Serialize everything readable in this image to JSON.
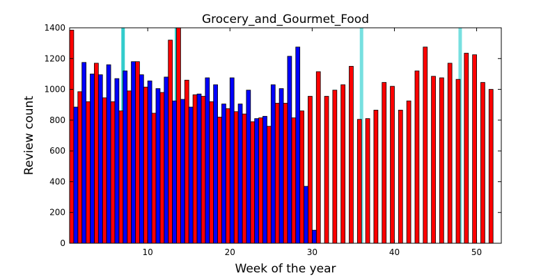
{
  "chart_data": {
    "type": "bar",
    "title": "Grocery_and_Gourmet_Food",
    "xlabel": "Week of the year",
    "ylabel": "Review count",
    "xlim": [
      0.5,
      53
    ],
    "ylim": [
      0,
      1400
    ],
    "xticks": [
      10,
      20,
      30,
      40,
      50
    ],
    "yticks": [
      0,
      200,
      400,
      600,
      800,
      1000,
      1200,
      1400
    ],
    "grid": false,
    "legend": "none",
    "series": [
      {
        "color": "#ff0000",
        "x": [
          1,
          2,
          3,
          4,
          5,
          6,
          7,
          8,
          9,
          10,
          11,
          12,
          13,
          14,
          15,
          16,
          17,
          18,
          19,
          20,
          21,
          22,
          23,
          24,
          25,
          26,
          27,
          28,
          29,
          30,
          31,
          32,
          33,
          34,
          35,
          36,
          37,
          38,
          39,
          40,
          41,
          42,
          43,
          44,
          45,
          46,
          47,
          48,
          49,
          50,
          51,
          52
        ],
        "values": [
          1385,
          985,
          920,
          1170,
          945,
          920,
          860,
          990,
          1180,
          1015,
          845,
          980,
          1320,
          1400,
          1060,
          965,
          955,
          920,
          820,
          875,
          855,
          840,
          790,
          815,
          760,
          910,
          910,
          815,
          860,
          955,
          1115,
          955,
          995,
          1030,
          1150,
          805,
          810,
          865,
          1045,
          1020,
          865,
          925,
          1120,
          1275,
          1085,
          1075,
          1170,
          1065,
          1235,
          1225,
          1045,
          1000
        ]
      },
      {
        "color": "#0000ff",
        "x": [
          1,
          2,
          3,
          4,
          5,
          6,
          7,
          8,
          9,
          10,
          11,
          12,
          13,
          14,
          15,
          16,
          17,
          18,
          19,
          20,
          21,
          22,
          23,
          24,
          25,
          26,
          27,
          28,
          29,
          30
        ],
        "values": [
          885,
          1175,
          1100,
          1095,
          1160,
          1070,
          1120,
          1180,
          1095,
          1055,
          1005,
          1080,
          925,
          935,
          885,
          970,
          1075,
          1030,
          905,
          1075,
          905,
          995,
          810,
          825,
          1030,
          1005,
          1215,
          1275,
          370,
          85
        ]
      }
    ],
    "highlight_weeks": [
      {
        "x": 7.0,
        "color": "#33cccc"
      },
      {
        "x": 13.5,
        "color": "#33cccc"
      },
      {
        "x": 36.0,
        "color": "#77e0e0"
      },
      {
        "x": 48.0,
        "color": "#77e0e0"
      }
    ]
  }
}
